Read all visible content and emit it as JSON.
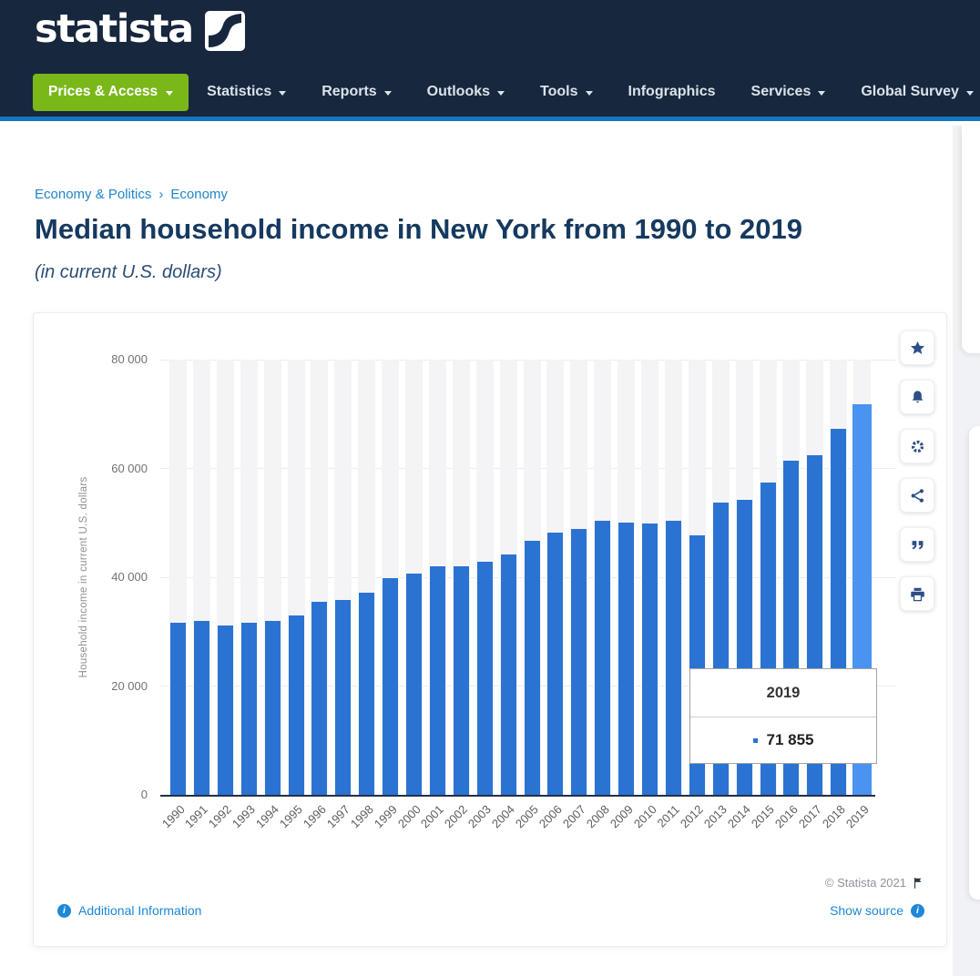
{
  "header": {
    "logo_text": "statista",
    "prices_button": "Prices & Access",
    "nav": [
      {
        "label": "Statistics",
        "caret": true
      },
      {
        "label": "Reports",
        "caret": true
      },
      {
        "label": "Outlooks",
        "caret": true
      },
      {
        "label": "Tools",
        "caret": true
      },
      {
        "label": "Infographics",
        "caret": false
      },
      {
        "label": "Services",
        "caret": true
      },
      {
        "label": "Global Survey",
        "caret": true
      }
    ]
  },
  "breadcrumb": {
    "items": [
      "Economy & Politics",
      "Economy"
    ],
    "separator": "›"
  },
  "page": {
    "title": "Median household income in New York from 1990 to 2019",
    "subtitle": "(in current U.S. dollars)"
  },
  "chart_data": {
    "type": "bar",
    "title": "Median household income in New York from 1990 to 2019",
    "xlabel": "",
    "ylabel": "Household income in current U.S. dollars",
    "ylim": [
      0,
      80000
    ],
    "yticks": [
      0,
      20000,
      40000,
      60000,
      80000
    ],
    "ytick_labels": [
      "0",
      "20 000",
      "40 000",
      "60 000",
      "80 000"
    ],
    "grid": true,
    "categories": [
      "1990",
      "1991",
      "1992",
      "1993",
      "1994",
      "1995",
      "1996",
      "1997",
      "1998",
      "1999",
      "2000",
      "2001",
      "2002",
      "2003",
      "2004",
      "2005",
      "2006",
      "2007",
      "2008",
      "2009",
      "2010",
      "2011",
      "2012",
      "2013",
      "2014",
      "2015",
      "2016",
      "2017",
      "2018",
      "2019"
    ],
    "values": [
      31600,
      32000,
      31100,
      31700,
      31900,
      33000,
      35400,
      35800,
      37100,
      39800,
      40700,
      42000,
      42000,
      42900,
      44200,
      46700,
      48200,
      48800,
      50300,
      50000,
      49800,
      50400,
      47700,
      53800,
      54300,
      57400,
      61400,
      62400,
      67300,
      71855
    ],
    "highlighted_category": "2019",
    "bar_color": "#2b73d2",
    "highlight_color": "#4a93f0"
  },
  "tooltip": {
    "year": "2019",
    "value": "71 855"
  },
  "action_rail": {
    "buttons": [
      "star",
      "bell",
      "gear",
      "share",
      "quote",
      "print"
    ]
  },
  "footer": {
    "copyright": "© Statista 2021",
    "additional_info": "Additional Information",
    "show_source": "Show source",
    "info_glyph": "i"
  },
  "colors": {
    "header_bg": "#17273d",
    "header_accent_line": "#1377bd",
    "primary_green": "#7ab819",
    "link_blue": "#1e87d6",
    "title_navy": "#16395f",
    "bar_blue": "#2b73d2",
    "bar_highlight_blue": "#4a93f0"
  }
}
